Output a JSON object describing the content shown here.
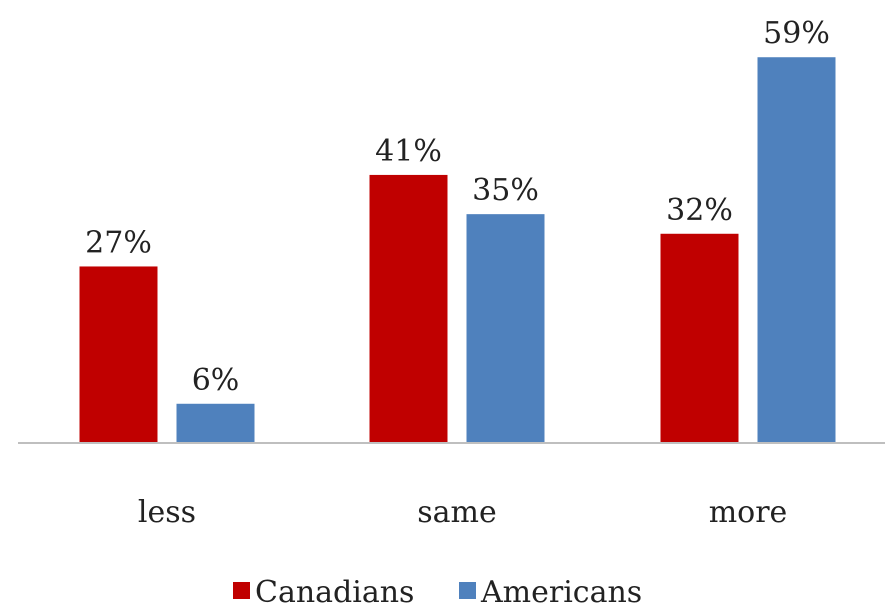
{
  "chart_data": {
    "type": "bar",
    "categories": [
      "less",
      "same",
      "more"
    ],
    "series": [
      {
        "name": "Canadians",
        "values": [
          27,
          41,
          32
        ],
        "labels": [
          "27%",
          "41%",
          "32%"
        ],
        "color": "#c00000"
      },
      {
        "name": "Americans",
        "values": [
          6,
          35,
          59
        ],
        "labels": [
          "6%",
          "35%",
          "59%"
        ],
        "color": "#4f81bd"
      }
    ],
    "title": "",
    "xlabel": "",
    "ylabel": "",
    "ylim": [
      0,
      65
    ],
    "grid": false,
    "legend_position": "bottom",
    "axis_color": "#bfbfbf"
  }
}
